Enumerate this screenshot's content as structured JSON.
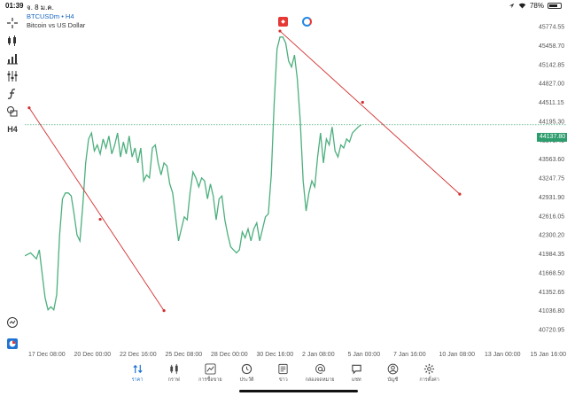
{
  "status_bar": {
    "time": "01:39",
    "date": "จ. 8 ม.ค.",
    "battery": "78%",
    "battery_level": 0.78
  },
  "symbol": {
    "ticker": "BTCUSDm",
    "timeframe": "H4",
    "description": "Bitcoin vs US Dollar"
  },
  "left_toolbar": {
    "items": [
      "crosshair",
      "candles",
      "bar-chart",
      "indicators",
      "fx",
      "shapes",
      "H4"
    ],
    "timeframe_label": "H4"
  },
  "chart_data": {
    "type": "line",
    "series": [
      {
        "color": "#4caf7d",
        "values": [
          [
            0,
            41950
          ],
          [
            2,
            42000
          ],
          [
            4,
            41900
          ],
          [
            5,
            42050
          ],
          [
            6,
            41650
          ],
          [
            7,
            41250
          ],
          [
            8,
            41050
          ],
          [
            9,
            41100
          ],
          [
            10,
            41050
          ],
          [
            11,
            41300
          ],
          [
            12,
            42300
          ],
          [
            13,
            42900
          ],
          [
            14,
            43000
          ],
          [
            15,
            43000
          ],
          [
            16,
            42950
          ],
          [
            17,
            42650
          ],
          [
            18,
            42300
          ],
          [
            19,
            42200
          ],
          [
            20,
            42800
          ],
          [
            21,
            43500
          ],
          [
            22,
            43900
          ],
          [
            23,
            44000
          ],
          [
            24,
            43700
          ],
          [
            25,
            43800
          ],
          [
            26,
            43650
          ],
          [
            27,
            43900
          ],
          [
            28,
            43750
          ],
          [
            29,
            43950
          ],
          [
            30,
            43650
          ],
          [
            31,
            43800
          ],
          [
            32,
            44000
          ],
          [
            33,
            43600
          ],
          [
            34,
            43850
          ],
          [
            35,
            43650
          ],
          [
            36,
            43950
          ],
          [
            37,
            43600
          ],
          [
            38,
            43750
          ],
          [
            39,
            43500
          ],
          [
            40,
            43750
          ],
          [
            41,
            43200
          ],
          [
            42,
            43300
          ],
          [
            43,
            43250
          ],
          [
            44,
            43750
          ],
          [
            45,
            43800
          ],
          [
            46,
            43500
          ],
          [
            47,
            43300
          ],
          [
            48,
            43500
          ],
          [
            49,
            43450
          ],
          [
            50,
            43150
          ],
          [
            51,
            43000
          ],
          [
            52,
            42600
          ],
          [
            53,
            42200
          ],
          [
            54,
            42400
          ],
          [
            55,
            42600
          ],
          [
            56,
            42550
          ],
          [
            57,
            43000
          ],
          [
            58,
            43350
          ],
          [
            59,
            43250
          ],
          [
            60,
            43100
          ],
          [
            61,
            43250
          ],
          [
            62,
            43200
          ],
          [
            63,
            42900
          ],
          [
            64,
            43150
          ],
          [
            65,
            42950
          ],
          [
            66,
            42550
          ],
          [
            67,
            42900
          ],
          [
            68,
            42950
          ],
          [
            69,
            42550
          ],
          [
            70,
            42300
          ],
          [
            71,
            42100
          ],
          [
            72,
            42050
          ],
          [
            73,
            42000
          ],
          [
            74,
            42050
          ],
          [
            75,
            42350
          ],
          [
            76,
            42250
          ],
          [
            77,
            42400
          ],
          [
            78,
            42200
          ],
          [
            79,
            42400
          ],
          [
            80,
            42500
          ],
          [
            81,
            42200
          ],
          [
            82,
            42400
          ],
          [
            83,
            42600
          ],
          [
            84,
            42650
          ],
          [
            85,
            43300
          ],
          [
            86,
            44500
          ],
          [
            87,
            45400
          ],
          [
            88,
            45600
          ],
          [
            89,
            45600
          ],
          [
            90,
            45500
          ],
          [
            91,
            45200
          ],
          [
            92,
            45100
          ],
          [
            93,
            45300
          ],
          [
            94,
            44900
          ],
          [
            95,
            44200
          ],
          [
            96,
            43200
          ],
          [
            97,
            42700
          ],
          [
            98,
            43000
          ],
          [
            99,
            43200
          ],
          [
            100,
            43100
          ],
          [
            101,
            43600
          ],
          [
            102,
            44000
          ],
          [
            103,
            43500
          ],
          [
            104,
            43900
          ],
          [
            105,
            43800
          ],
          [
            106,
            44100
          ],
          [
            107,
            43700
          ],
          [
            108,
            43600
          ],
          [
            109,
            43800
          ],
          [
            110,
            43750
          ],
          [
            111,
            43900
          ],
          [
            112,
            43850
          ],
          [
            113,
            44000
          ],
          [
            114,
            44050
          ],
          [
            115,
            44100
          ],
          [
            116,
            44137.8
          ]
        ]
      }
    ],
    "current_price": "44137.80",
    "y_ticks": [
      "45774.55",
      "45458.70",
      "45142.85",
      "44827.00",
      "44511.15",
      "44195.30",
      "43879.45",
      "43563.60",
      "43247.75",
      "42931.90",
      "42616.05",
      "42300.20",
      "41984.35",
      "41668.50",
      "41352.65",
      "41036.80",
      "40720.95"
    ],
    "x_ticks": [
      "17 Dec 08:00",
      "20 Dec 00:00",
      "22 Dec 16:00",
      "25 Dec 08:00",
      "28 Dec 00:00",
      "30 Dec 16:00",
      "2 Jan 08:00",
      "5 Jan 00:00",
      "7 Jan 16:00",
      "10 Jan 08:00",
      "13 Jan 00:00",
      "15 Jan 16:00"
    ],
    "ylim": [
      40720.95,
      45774.55
    ],
    "trendlines": [
      {
        "color": "#d32f2f",
        "from": [
          1.5,
          44420
        ],
        "mid": [
          26,
          42560
        ],
        "to": [
          48,
          41036.8
        ]
      },
      {
        "color": "#d32f2f",
        "from": [
          88,
          45700
        ],
        "mid": [
          116.5,
          44511.15
        ],
        "to": [
          150,
          42980
        ]
      }
    ],
    "grid": false
  },
  "bottom_nav": {
    "items": [
      {
        "id": "quotes",
        "label": "ราคา",
        "icon": "arrows-icon",
        "active": true
      },
      {
        "id": "chart",
        "label": "กราฟ",
        "icon": "candles-icon",
        "active": false
      },
      {
        "id": "trade",
        "label": "การซื้อขาย",
        "icon": "trade-chart-icon",
        "active": false
      },
      {
        "id": "history",
        "label": "ประวัติ",
        "icon": "history-icon",
        "active": false
      },
      {
        "id": "news",
        "label": "ข่าว",
        "icon": "news-icon",
        "active": false
      },
      {
        "id": "mailbox",
        "label": "กล่องจดหมาย",
        "icon": "at-icon",
        "active": false
      },
      {
        "id": "chat",
        "label": "แชท",
        "icon": "chat-icon",
        "active": false
      },
      {
        "id": "accounts",
        "label": "บัญชี",
        "icon": "account-icon",
        "active": false
      },
      {
        "id": "settings",
        "label": "การตั้งค่า",
        "icon": "gear-icon",
        "active": false
      }
    ]
  }
}
